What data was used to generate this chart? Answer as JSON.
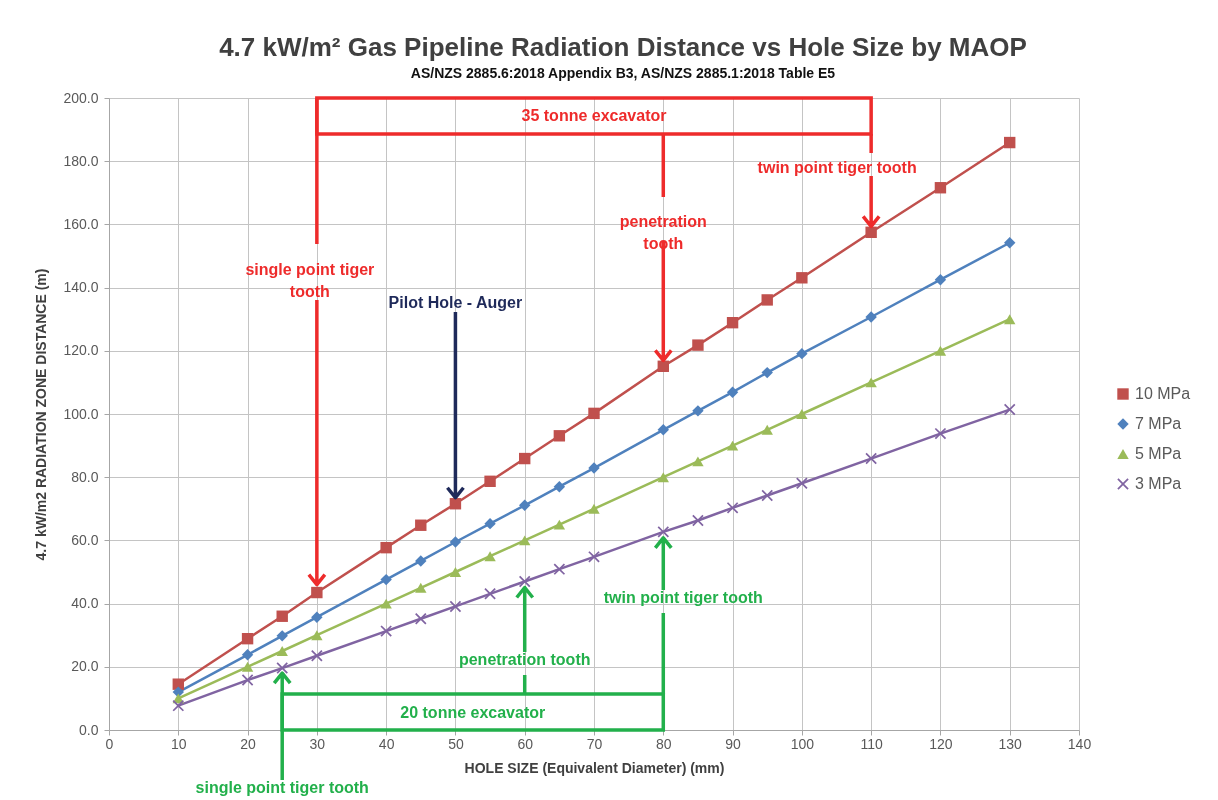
{
  "chart_data": {
    "type": "line",
    "title": "4.7 kW/m² Gas Pipeline Radiation Distance vs Hole Size by MAOP",
    "subtitle": "AS/NZS 2885.6:2018 Appendix B3, AS/NZS 2885.1:2018 Table E5",
    "xlabel": "HOLE SIZE (Equivalent Diameter) (mm)",
    "ylabel": "4.7 kW/m2 RADIATION ZONE DISTANCE (m)",
    "x": [
      10,
      20,
      25,
      30,
      40,
      45,
      50,
      55,
      60,
      65,
      70,
      80,
      85,
      90,
      95,
      100,
      110,
      120,
      130
    ],
    "series": [
      {
        "name": "10 MPa",
        "color": "#c0504d",
        "marker": "square",
        "values": [
          14.5,
          28.9,
          36.0,
          43.5,
          57.7,
          64.8,
          71.6,
          78.7,
          85.9,
          93.1,
          100.2,
          115.1,
          121.8,
          128.9,
          136.1,
          143.1,
          157.5,
          171.6,
          185.9
        ]
      },
      {
        "name": "7 MPa",
        "color": "#4f81bd",
        "marker": "diamond",
        "values": [
          12.0,
          23.8,
          29.8,
          35.7,
          47.6,
          53.5,
          59.5,
          65.3,
          71.1,
          77.0,
          82.9,
          95.0,
          101.0,
          106.9,
          113.1,
          119.1,
          130.7,
          142.5,
          154.2
        ]
      },
      {
        "name": "5 MPa",
        "color": "#9bbb59",
        "marker": "triangle",
        "values": [
          10.0,
          20.0,
          25.0,
          30.0,
          40.0,
          45.0,
          50.0,
          55.0,
          60.0,
          65.0,
          70.0,
          80.0,
          85.0,
          90.0,
          95.0,
          100.0,
          110.0,
          120.0,
          130.0
        ]
      },
      {
        "name": "3 MPa",
        "color": "#8064a2",
        "marker": "cross",
        "values": [
          7.7,
          15.8,
          19.6,
          23.5,
          31.3,
          35.2,
          39.1,
          43.1,
          47.0,
          50.9,
          54.8,
          62.7,
          66.3,
          70.3,
          74.2,
          78.1,
          85.9,
          93.8,
          101.4
        ]
      }
    ],
    "xlim": [
      0,
      140
    ],
    "xticks": [
      0,
      10,
      20,
      30,
      40,
      50,
      60,
      70,
      80,
      90,
      100,
      110,
      120,
      130,
      140
    ],
    "ylim": [
      0,
      200
    ],
    "yticks": [
      {
        "value": 0,
        "label": "0.0"
      },
      {
        "value": 20,
        "label": "20.0"
      },
      {
        "value": 40,
        "label": "40.0"
      },
      {
        "value": 60,
        "label": "60.0"
      },
      {
        "value": 80,
        "label": "80.0"
      },
      {
        "value": 100,
        "label": "100.0"
      },
      {
        "value": 120,
        "label": "120.0"
      },
      {
        "value": 140,
        "label": "140.0"
      },
      {
        "value": 160,
        "label": "160.0"
      },
      {
        "value": 180,
        "label": "180.0"
      },
      {
        "value": 200,
        "label": "200.0"
      }
    ],
    "grid": true,
    "legend": "right",
    "line_style": "solid",
    "annotations": [
      "35 tonne excavator",
      {
        "text": "single point tiger tooth",
        "x": 30,
        "y": 43.5
      },
      {
        "text": "penetration tooth",
        "x": 80,
        "y": 115.1
      },
      {
        "text": "twin point tiger tooth",
        "x": 110,
        "y": 157.5
      },
      {
        "text": "Pilot Hole - Auger",
        "x": 50,
        "y": 71.6
      },
      "20 tonne excavator",
      {
        "text": "single point tiger tooth",
        "x": 25,
        "y": 19.6
      },
      {
        "text": "penetration  tooth",
        "x": 60,
        "y": 47.0
      },
      {
        "text": "twin point tiger tooth",
        "x": 80,
        "y": 62.7
      }
    ]
  }
}
